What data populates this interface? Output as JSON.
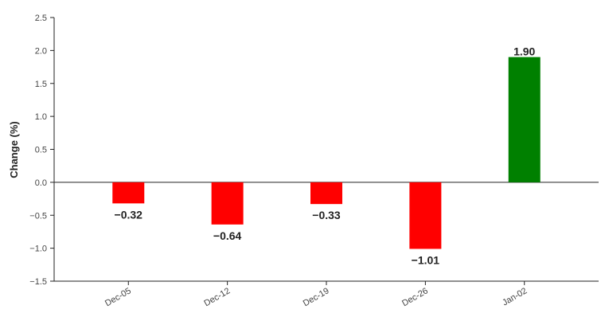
{
  "chart_data": {
    "type": "bar",
    "y_label": "Change (%)",
    "categories": [
      "Dec-05",
      "Dec-12",
      "Dec-19",
      "Dec-26",
      "Jan-02"
    ],
    "values": [
      -0.32,
      -0.64,
      -0.33,
      -1.01,
      1.9
    ],
    "value_labels": [
      "−0.32",
      "−0.64",
      "−0.33",
      "−1.01",
      "1.90"
    ],
    "positive_color": "#008000",
    "negative_color": "#ff0000",
    "ylim": [
      -1.5,
      2.5
    ],
    "yticks": [
      {
        "value": -1.5,
        "label": "−1.5"
      },
      {
        "value": -1,
        "label": "−1.0"
      },
      {
        "value": -0.5,
        "label": "−0.5"
      },
      {
        "value": 0,
        "label": "0.0"
      },
      0.5,
      {
        "value": 1,
        "label": "1.0"
      },
      1.5,
      {
        "value": 2,
        "label": "2.0"
      },
      2.5
    ]
  }
}
